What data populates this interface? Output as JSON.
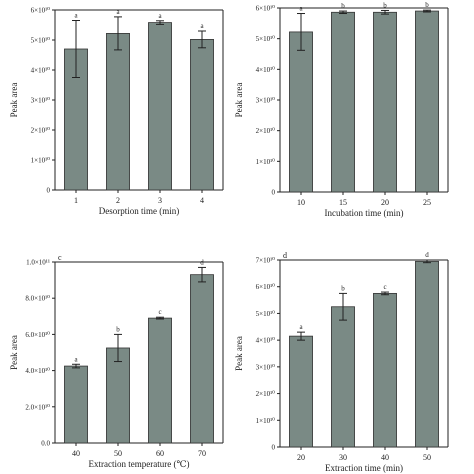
{
  "chart_data": [
    {
      "type": "bar",
      "panel_letter": "",
      "categories": [
        "1",
        "2",
        "3",
        "4"
      ],
      "values": [
        4.7,
        5.22,
        5.58,
        5.02
      ],
      "errors": [
        0.95,
        0.55,
        0.06,
        0.28
      ],
      "letters": [
        "a",
        "a",
        "a",
        "a"
      ],
      "ylim": [
        0,
        6
      ],
      "yticks": [
        "0",
        "1×10¹⁰",
        "2×10¹⁰",
        "3×10¹⁰",
        "4×10¹⁰",
        "5×10¹⁰",
        "6×10¹⁰"
      ],
      "ylabel": "Peak area",
      "xlabel": "Desorption time (min)",
      "bar_color": "#7a8a85"
    },
    {
      "type": "bar",
      "panel_letter": "",
      "categories": [
        "10",
        "15",
        "20",
        "25"
      ],
      "values": [
        5.22,
        5.86,
        5.86,
        5.9
      ],
      "errors": [
        0.6,
        0.04,
        0.06,
        0.03
      ],
      "letters": [
        "a",
        "b",
        "b",
        "b"
      ],
      "ylim": [
        0,
        6
      ],
      "yticks": [
        "0",
        "1×10¹⁰",
        "2×10¹⁰",
        "3×10¹⁰",
        "4×10¹⁰",
        "5×10¹⁰",
        "6×10¹⁰"
      ],
      "ylabel": "Peak area",
      "xlabel": "Incubation time (min)",
      "bar_color": "#7a8a85"
    },
    {
      "type": "bar",
      "panel_letter": "c",
      "categories": [
        "40",
        "50",
        "60",
        "70"
      ],
      "values": [
        4.25,
        5.25,
        6.9,
        9.3
      ],
      "errors": [
        0.1,
        0.75,
        0.05,
        0.4
      ],
      "letters": [
        "a",
        "b",
        "c",
        "d"
      ],
      "ylim": [
        0,
        10
      ],
      "yticks": [
        "0.0",
        "2.0×10¹⁰",
        "4.0×10¹⁰",
        "6.0×10¹⁰",
        "8.0×10¹⁰",
        "1.0×10¹¹"
      ],
      "ylabel": "Peak area",
      "xlabel": "Extraction temperature (℃)",
      "bar_color": "#7a8a85"
    },
    {
      "type": "bar",
      "panel_letter": "d",
      "categories": [
        "20",
        "30",
        "40",
        "50"
      ],
      "values": [
        4.15,
        5.25,
        5.75,
        6.95
      ],
      "errors": [
        0.15,
        0.5,
        0.05,
        0.05
      ],
      "letters": [
        "a",
        "b",
        "c",
        "d"
      ],
      "ylim": [
        0,
        7
      ],
      "yticks": [
        "0",
        "1×10¹⁰",
        "2×10¹⁰",
        "3×10¹⁰",
        "4×10¹⁰",
        "5×10¹⁰",
        "6×10¹⁰",
        "7×10¹⁰"
      ],
      "ylabel": "Peak area",
      "xlabel": "Extraction time (min)",
      "bar_color": "#7a8a85"
    }
  ]
}
